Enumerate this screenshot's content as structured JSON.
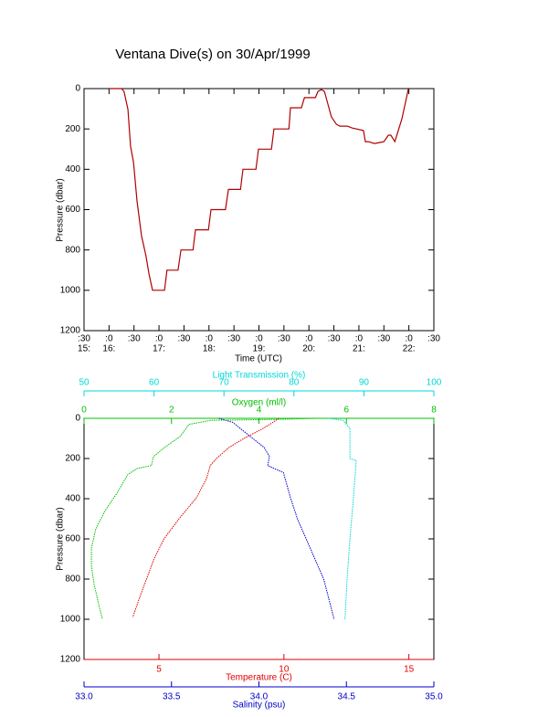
{
  "chart_data": [
    {
      "type": "line",
      "title": "Ventana Dive(s) on 30/Apr/1999",
      "xlabel": "Time (UTC)",
      "ylabel": "Pressure (dbar)",
      "xlim": [
        15.5,
        22.5
      ],
      "xticks": [
        {
          "value": 15.5,
          "label": ":30"
        },
        {
          "value": 16,
          "label": ":0"
        },
        {
          "value": 16.5,
          "label": ":30"
        },
        {
          "value": 17,
          "label": ":0"
        },
        {
          "value": 17.5,
          "label": ":30"
        },
        {
          "value": 18,
          "label": ":0"
        },
        {
          "value": 18.5,
          "label": ":30"
        },
        {
          "value": 19,
          "label": ":0"
        },
        {
          "value": 19.5,
          "label": ":30"
        },
        {
          "value": 20,
          "label": ":0"
        },
        {
          "value": 20.5,
          "label": ":30"
        },
        {
          "value": 21,
          "label": ":0"
        },
        {
          "value": 21.5,
          "label": ":30"
        },
        {
          "value": 22,
          "label": ":0"
        },
        {
          "value": 22.5,
          "label": ":30"
        }
      ],
      "xtick_hours": [
        {
          "value": 15.5,
          "label": "15:"
        },
        {
          "value": 16,
          "label": "16:"
        },
        {
          "value": 17,
          "label": "17:"
        },
        {
          "value": 18,
          "label": "18:"
        },
        {
          "value": 19,
          "label": "19:"
        },
        {
          "value": 20,
          "label": "20:"
        },
        {
          "value": 21,
          "label": "21:"
        },
        {
          "value": 22,
          "label": "22:"
        }
      ],
      "ylim": [
        0,
        1200
      ],
      "yreversed": true,
      "yticks": [
        0,
        200,
        400,
        600,
        800,
        1000,
        1200
      ],
      "series": [
        {
          "color": "#b00000",
          "x": [
            16.0,
            16.25,
            16.3,
            16.38,
            16.43,
            16.49,
            16.56,
            16.65,
            16.74,
            16.8,
            16.87,
            16.93,
            17.11,
            17.16,
            17.38,
            17.44,
            17.68,
            17.73,
            17.99,
            18.04,
            18.33,
            18.39,
            18.63,
            18.68,
            18.94,
            18.99,
            19.25,
            19.3,
            19.6,
            19.63,
            19.85,
            19.91,
            20.13,
            20.18,
            20.25,
            20.31,
            20.36,
            20.45,
            20.55,
            20.62,
            20.77,
            20.86,
            21.09,
            21.13,
            21.19,
            21.31,
            21.42,
            21.5,
            21.59,
            21.64,
            21.72,
            21.86,
            21.94,
            21.99
          ],
          "values": [
            0,
            0,
            14,
            104,
            285,
            367,
            557,
            729,
            829,
            919,
            1000,
            1000,
            1000,
            900,
            900,
            800,
            800,
            700,
            700,
            600,
            600,
            500,
            500,
            400,
            400,
            300,
            300,
            200,
            200,
            95,
            95,
            45,
            45,
            14,
            5,
            14,
            59,
            140,
            177,
            186,
            186,
            195,
            208,
            263,
            263,
            272,
            267,
            263,
            231,
            231,
            263,
            150,
            59,
            0
          ]
        }
      ]
    },
    {
      "type": "profile",
      "ylabel": "Pressure (dbar)",
      "ylim": [
        0,
        1200
      ],
      "yreversed": true,
      "yticks": [
        0,
        200,
        400,
        600,
        800,
        1000,
        1200
      ],
      "xaxes": [
        {
          "label": "Oxygen (ml/l)",
          "color": "#00c000",
          "position": "top",
          "lim": [
            0,
            8
          ],
          "ticks": [
            0,
            2,
            4,
            6,
            8
          ]
        },
        {
          "label": "Light Transmission (%)",
          "color": "#00d8d8",
          "position": "top",
          "lim": [
            50,
            100
          ],
          "ticks": [
            50,
            60,
            70,
            80,
            90,
            100
          ]
        },
        {
          "label": "Temperature (C)",
          "color": "#e00000",
          "position": "bottom",
          "lim": [
            2,
            16
          ],
          "ticks": [
            5,
            10,
            15
          ]
        },
        {
          "label": "Salinity (psu)",
          "color": "#0000c8",
          "position": "bottom",
          "lim": [
            33,
            35
          ],
          "ticks": [
            {
              "value": 33,
              "label": "33.0"
            },
            33.5,
            {
              "value": 34,
              "label": "34.0"
            },
            34.5,
            {
              "value": 35,
              "label": "35.0"
            }
          ]
        }
      ],
      "series": [
        {
          "axis": 0,
          "color": "#00c000",
          "pressure": [
            0,
            5,
            10,
            30,
            90,
            145,
            190,
            235,
            250,
            280,
            373,
            460,
            550,
            645,
            735,
            825,
            920,
            1000
          ],
          "values": [
            5.3,
            4.5,
            2.9,
            2.4,
            2.2,
            1.84,
            1.59,
            1.54,
            1.21,
            1.0,
            0.75,
            0.48,
            0.27,
            0.17,
            0.17,
            0.23,
            0.33,
            0.42
          ]
        },
        {
          "axis": 1,
          "color": "#00d8d8",
          "pressure": [
            0,
            10,
            50,
            200,
            210,
            400,
            600,
            800,
            1000
          ],
          "values": [
            85,
            87,
            88,
            88,
            88.9,
            88.5,
            88,
            87.6,
            87.3
          ]
        },
        {
          "axis": 2,
          "color": "#e00000",
          "pressure": [
            0,
            25,
            55,
            100,
            145,
            200,
            235,
            300,
            395,
            500,
            600,
            700,
            800,
            900,
            990
          ],
          "values": [
            9.8,
            9.5,
            9.1,
            8.4,
            7.8,
            7.3,
            7.05,
            6.9,
            6.5,
            5.8,
            5.2,
            4.8,
            4.5,
            4.2,
            3.95
          ]
        },
        {
          "axis": 3,
          "color": "#0000c8",
          "pressure": [
            0,
            20,
            55,
            145,
            190,
            235,
            270,
            395,
            500,
            600,
            700,
            800,
            900,
            1000
          ],
          "values": [
            33.77,
            33.85,
            33.9,
            34.03,
            34.06,
            34.05,
            34.14,
            34.18,
            34.22,
            34.27,
            34.32,
            34.37,
            34.4,
            34.43
          ]
        }
      ]
    }
  ]
}
